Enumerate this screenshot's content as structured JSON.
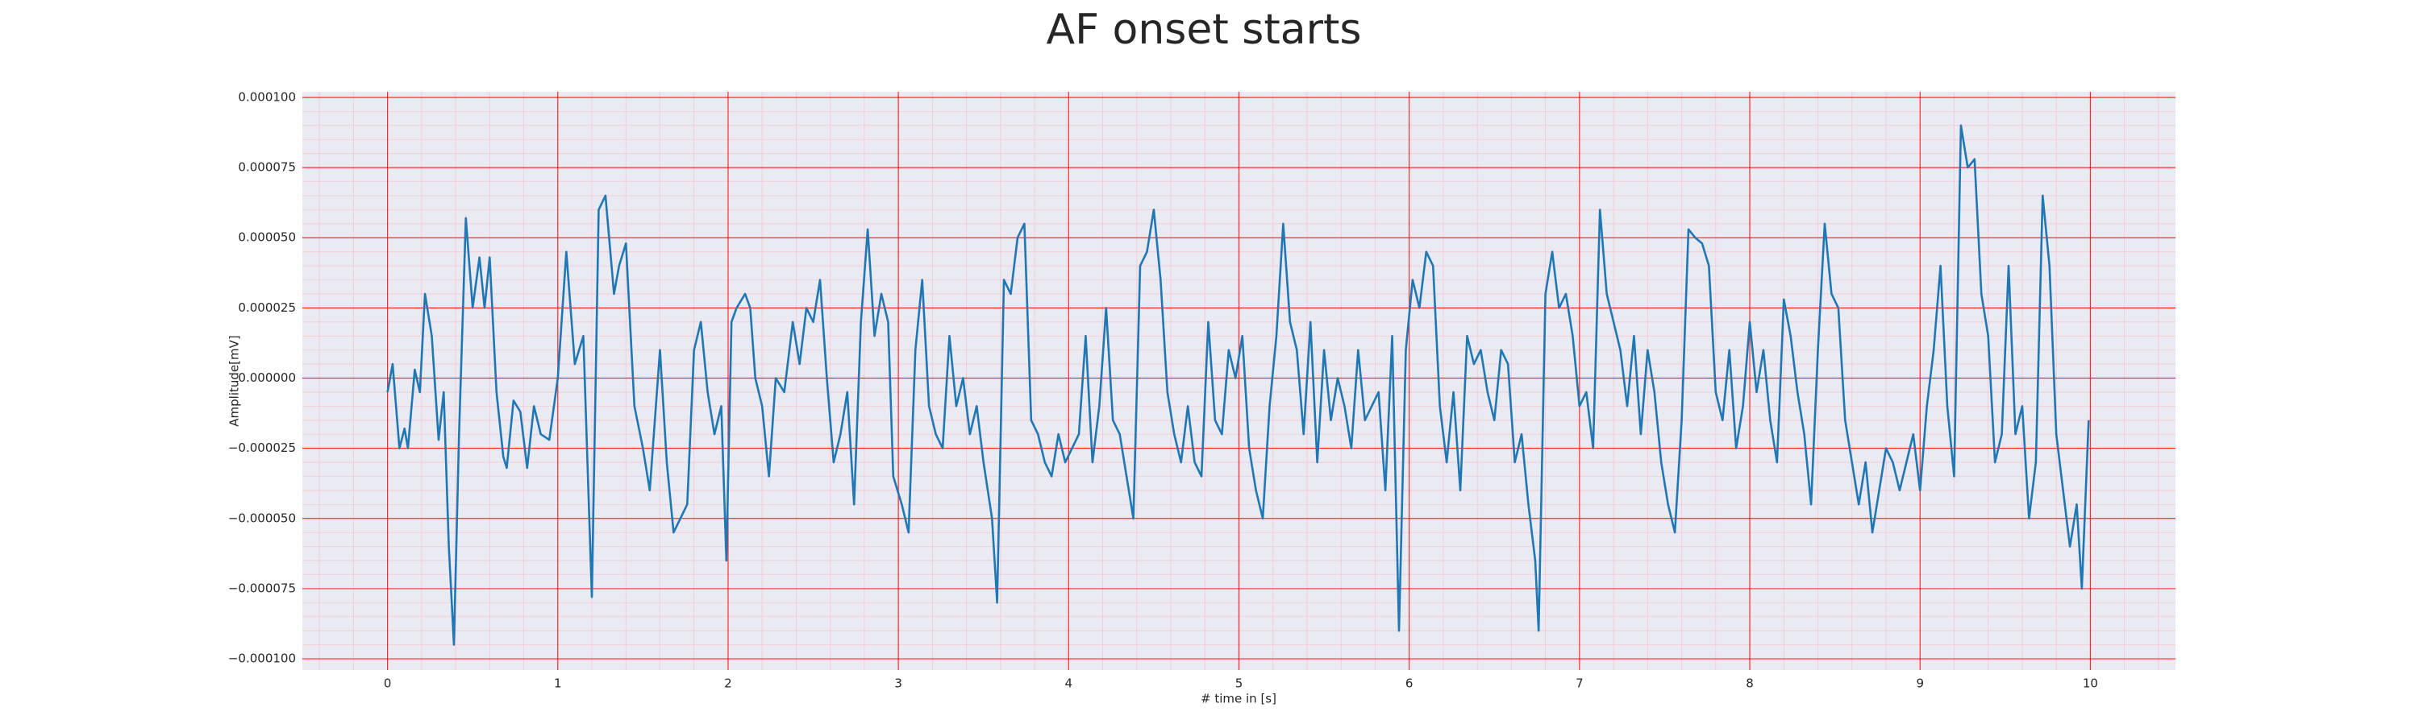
{
  "chart_data": {
    "type": "line",
    "title": "AF onset starts",
    "xlabel": "# time in [s]",
    "ylabel": "Amplitude[mV]",
    "x": [
      0,
      0.03,
      0.07,
      0.1,
      0.12,
      0.16,
      0.19,
      0.22,
      0.26,
      0.3,
      0.33,
      0.36,
      0.39,
      0.42,
      0.46,
      0.5,
      0.54,
      0.57,
      0.6,
      0.64,
      0.68,
      0.7,
      0.74,
      0.78,
      0.82,
      0.86,
      0.9,
      0.95,
      1.0,
      1.05,
      1.1,
      1.15,
      1.2,
      1.24,
      1.28,
      1.33,
      1.36,
      1.4,
      1.45,
      1.5,
      1.54,
      1.6,
      1.64,
      1.68,
      1.72,
      1.76,
      1.8,
      1.84,
      1.88,
      1.92,
      1.96,
      1.99,
      2.02,
      2.05,
      2.1,
      2.13,
      2.16,
      2.2,
      2.24,
      2.28,
      2.33,
      2.38,
      2.42,
      2.46,
      2.5,
      2.54,
      2.58,
      2.62,
      2.66,
      2.7,
      2.74,
      2.78,
      2.82,
      2.86,
      2.9,
      2.94,
      2.97,
      3.02,
      3.06,
      3.1,
      3.14,
      3.18,
      3.22,
      3.26,
      3.3,
      3.34,
      3.38,
      3.42,
      3.46,
      3.5,
      3.55,
      3.58,
      3.62,
      3.66,
      3.7,
      3.74,
      3.78,
      3.82,
      3.86,
      3.9,
      3.94,
      3.98,
      4.02,
      4.06,
      4.1,
      4.14,
      4.18,
      4.22,
      4.26,
      4.3,
      4.34,
      4.38,
      4.42,
      4.46,
      4.5,
      4.54,
      4.58,
      4.62,
      4.66,
      4.7,
      4.74,
      4.78,
      4.82,
      4.86,
      4.9,
      4.94,
      4.98,
      5.02,
      5.06,
      5.1,
      5.14,
      5.18,
      5.22,
      5.26,
      5.3,
      5.34,
      5.38,
      5.42,
      5.46,
      5.5,
      5.54,
      5.58,
      5.62,
      5.66,
      5.7,
      5.74,
      5.78,
      5.82,
      5.86,
      5.9,
      5.94,
      5.98,
      6.02,
      6.06,
      6.1,
      6.14,
      6.18,
      6.22,
      6.26,
      6.3,
      6.34,
      6.38,
      6.42,
      6.46,
      6.5,
      6.54,
      6.58,
      6.62,
      6.66,
      6.7,
      6.74,
      6.76,
      6.8,
      6.84,
      6.88,
      6.92,
      6.96,
      7.0,
      7.04,
      7.08,
      7.12,
      7.16,
      7.2,
      7.24,
      7.28,
      7.32,
      7.36,
      7.4,
      7.44,
      7.48,
      7.52,
      7.56,
      7.6,
      7.64,
      7.68,
      7.72,
      7.76,
      7.8,
      7.84,
      7.88,
      7.92,
      7.96,
      8.0,
      8.04,
      8.08,
      8.12,
      8.16,
      8.2,
      8.24,
      8.28,
      8.32,
      8.36,
      8.4,
      8.44,
      8.48,
      8.52,
      8.56,
      8.6,
      8.64,
      8.68,
      8.72,
      8.76,
      8.8,
      8.84,
      8.88,
      8.92,
      8.96,
      9.0,
      9.04,
      9.08,
      9.12,
      9.16,
      9.2,
      9.24,
      9.28,
      9.32,
      9.36,
      9.4,
      9.44,
      9.48,
      9.52,
      9.56,
      9.6,
      9.64,
      9.68,
      9.72,
      9.76,
      9.8,
      9.84,
      9.88,
      9.92,
      9.95,
      9.99
    ],
    "series": [
      {
        "color": "#1f77b4",
        "values": [
          -5e-06,
          5e-06,
          -2.5e-05,
          -1.8e-05,
          -2.5e-05,
          3e-06,
          -5e-06,
          3e-05,
          1.5e-05,
          -2.2e-05,
          -5e-06,
          -6e-05,
          -9.5e-05,
          -2e-05,
          5.7e-05,
          2.5e-05,
          4.3e-05,
          2.5e-05,
          4.3e-05,
          -5e-06,
          -2.8e-05,
          -3.2e-05,
          -8e-06,
          -1.2e-05,
          -3.2e-05,
          -1e-05,
          -2e-05,
          -2.2e-05,
          0,
          4.5e-05,
          5e-06,
          1.5e-05,
          -7.8e-05,
          6e-05,
          6.5e-05,
          3e-05,
          4e-05,
          4.8e-05,
          -1e-05,
          -2.5e-05,
          -4e-05,
          1e-05,
          -3e-05,
          -5.5e-05,
          -5e-05,
          -4.5e-05,
          1e-05,
          2e-05,
          -5e-06,
          -2e-05,
          -1e-05,
          -6.5e-05,
          2e-05,
          2.5e-05,
          3e-05,
          2.5e-05,
          0,
          -1e-05,
          -3.5e-05,
          0,
          -5e-06,
          2e-05,
          5e-06,
          2.5e-05,
          2e-05,
          3.5e-05,
          0,
          -3e-05,
          -2e-05,
          -5e-06,
          -4.5e-05,
          2e-05,
          5.3e-05,
          1.5e-05,
          3e-05,
          2e-05,
          -3.5e-05,
          -4.5e-05,
          -5.5e-05,
          1e-05,
          3.5e-05,
          -1e-05,
          -2e-05,
          -2.5e-05,
          1.5e-05,
          -1e-05,
          0,
          -2e-05,
          -1e-05,
          -3e-05,
          -5e-05,
          -8e-05,
          3.5e-05,
          3e-05,
          5e-05,
          5.5e-05,
          -1.5e-05,
          -2e-05,
          -3e-05,
          -3.5e-05,
          -2e-05,
          -3e-05,
          -2.5e-05,
          -2e-05,
          1.5e-05,
          -3e-05,
          -1e-05,
          2.5e-05,
          -1.5e-05,
          -2e-05,
          -3.5e-05,
          -5e-05,
          4e-05,
          4.5e-05,
          6e-05,
          3.5e-05,
          -5e-06,
          -2e-05,
          -3e-05,
          -1e-05,
          -3e-05,
          -3.5e-05,
          2e-05,
          -1.5e-05,
          -2e-05,
          1e-05,
          0,
          1.5e-05,
          -2.5e-05,
          -4e-05,
          -5e-05,
          -1e-05,
          1.5e-05,
          5.5e-05,
          2e-05,
          1e-05,
          -2e-05,
          2e-05,
          -3e-05,
          1e-05,
          -1.5e-05,
          0,
          -1e-05,
          -2.5e-05,
          1e-05,
          -1.5e-05,
          -1e-05,
          -5e-06,
          -4e-05,
          1.5e-05,
          -9e-05,
          1e-05,
          3.5e-05,
          2.5e-05,
          4.5e-05,
          4e-05,
          -1e-05,
          -3e-05,
          -5e-06,
          -4e-05,
          1.5e-05,
          5e-06,
          1e-05,
          -5e-06,
          -1.5e-05,
          1e-05,
          5e-06,
          -3e-05,
          -2e-05,
          -4.5e-05,
          -6.5e-05,
          -9e-05,
          3e-05,
          4.5e-05,
          2.5e-05,
          3e-05,
          1.5e-05,
          -1e-05,
          -5e-06,
          -2.5e-05,
          6e-05,
          3e-05,
          2e-05,
          1e-05,
          -1e-05,
          1.5e-05,
          -2e-05,
          1e-05,
          -5e-06,
          -3e-05,
          -4.5e-05,
          -5.5e-05,
          -1.5e-05,
          5.3e-05,
          5e-05,
          4.8e-05,
          4e-05,
          -5e-06,
          -1.5e-05,
          1e-05,
          -2.5e-05,
          -1e-05,
          2e-05,
          -5e-06,
          1e-05,
          -1.5e-05,
          -3e-05,
          2.8e-05,
          1.5e-05,
          -5e-06,
          -2e-05,
          -4.5e-05,
          1e-05,
          5.5e-05,
          3e-05,
          2.5e-05,
          -1.5e-05,
          -3e-05,
          -4.5e-05,
          -3e-05,
          -5.5e-05,
          -4e-05,
          -2.5e-05,
          -3e-05,
          -4e-05,
          -3e-05,
          -2e-05,
          -4e-05,
          -1e-05,
          1e-05,
          4e-05,
          -1e-05,
          -3.5e-05,
          9e-05,
          7.5e-05,
          7.8e-05,
          3e-05,
          1.5e-05,
          -3e-05,
          -2e-05,
          4e-05,
          -2e-05,
          -1e-05,
          -5e-05,
          -3e-05,
          6.5e-05,
          4e-05,
          -2e-05,
          -4e-05,
          -6e-05,
          -4.5e-05,
          -7.5e-05,
          -1.5e-05
        ]
      }
    ],
    "xlim": [
      -0.5,
      10.5
    ],
    "xticks": [
      0,
      1,
      2,
      3,
      4,
      5,
      6,
      7,
      8,
      9,
      10
    ],
    "ylim": [
      -0.000104,
      0.000102
    ],
    "yticks": [
      {
        "value": -0.0001,
        "label": "−0.000100"
      },
      {
        "value": -7.5e-05,
        "label": "−0.000075"
      },
      {
        "value": -5e-05,
        "label": "−0.000050"
      },
      {
        "value": -2.5e-05,
        "label": "−0.000025"
      },
      {
        "value": 0,
        "label": "0.000000"
      },
      {
        "value": 2.5e-05,
        "label": "0.000025"
      },
      {
        "value": 5e-05,
        "label": "0.000050"
      },
      {
        "value": 7.5e-05,
        "label": "0.000075"
      },
      {
        "value": 0.0001,
        "label": "0.000100"
      }
    ],
    "grid": true,
    "grid_color": "#ff0000",
    "minor_grid": true,
    "minor_grid_color": "#ffb0c0",
    "minor_divisions": 5,
    "background": "#eaeaf2"
  }
}
